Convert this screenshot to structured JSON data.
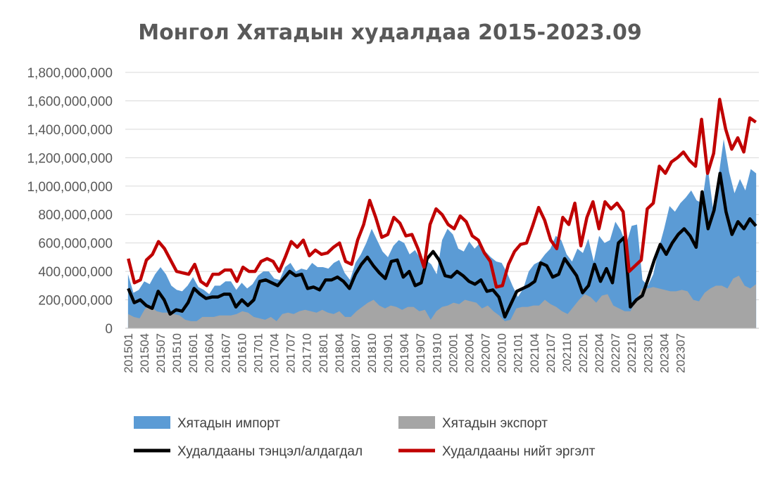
{
  "chart_data": {
    "type": "area",
    "title": "Монгол Хятадын худалдаа 2015-2023.09",
    "xlabel": "",
    "ylabel": "",
    "ylim": [
      0,
      1800000000
    ],
    "y_ticks": [
      0,
      200000000,
      400000000,
      600000000,
      800000000,
      1000000000,
      1200000000,
      1400000000,
      1600000000,
      1800000000
    ],
    "y_tick_labels": [
      "0",
      "200,000,000",
      "400,000,000",
      "600,000,000",
      "800,000,000",
      "1,000,000,000",
      "1,200,000,000",
      "1,400,000,000",
      "1,600,000,000",
      "1,800,000,000"
    ],
    "grid": true,
    "legend_position": "bottom",
    "x_start": "2015-01",
    "x_end": "2023-09",
    "x_tick_labels": [
      "201501",
      "201504",
      "201507",
      "201510",
      "201601",
      "201604",
      "201607",
      "201610",
      "201701",
      "201704",
      "201707",
      "201710",
      "201801",
      "201804",
      "201807",
      "201810",
      "201901",
      "201904",
      "201907",
      "201910",
      "202001",
      "202004",
      "202007",
      "202010",
      "202101",
      "202104",
      "202107",
      "202110",
      "202201",
      "202204",
      "202207",
      "202210",
      "202301",
      "202304",
      "202307"
    ],
    "series": [
      {
        "name": "Хятадын импорт",
        "kind": "area",
        "color": "#5b9bd5",
        "values": [
          380,
          250,
          270,
          330,
          310,
          380,
          430,
          380,
          300,
          270,
          260,
          300,
          360,
          290,
          270,
          240,
          300,
          300,
          330,
          330,
          270,
          320,
          280,
          310,
          370,
          400,
          400,
          350,
          340,
          430,
          460,
          400,
          420,
          410,
          460,
          430,
          430,
          420,
          460,
          480,
          390,
          340,
          460,
          520,
          600,
          700,
          620,
          540,
          500,
          580,
          620,
          600,
          520,
          550,
          490,
          480,
          450,
          380,
          620,
          700,
          660,
          560,
          540,
          610,
          560,
          600,
          540,
          500,
          470,
          460,
          390,
          300,
          220,
          280,
          400,
          450,
          470,
          520,
          560,
          650,
          620,
          520,
          470,
          560,
          530,
          630,
          470,
          650,
          600,
          620,
          750,
          690,
          590,
          720,
          730,
          340,
          300,
          380,
          560,
          700,
          860,
          820,
          880,
          920,
          970,
          900,
          880,
          1150,
          850,
          1050,
          1330,
          1100,
          950,
          1050,
          970,
          1120,
          1090
        ]
      },
      {
        "name": "Хятадын экспорт",
        "kind": "area",
        "color": "#a5a5a5",
        "values": [
          100,
          80,
          70,
          140,
          150,
          120,
          110,
          110,
          100,
          90,
          60,
          50,
          50,
          80,
          80,
          80,
          90,
          90,
          90,
          100,
          120,
          110,
          80,
          70,
          60,
          80,
          50,
          100,
          110,
          100,
          120,
          130,
          120,
          110,
          130,
          110,
          100,
          120,
          80,
          80,
          120,
          150,
          180,
          200,
          160,
          140,
          160,
          150,
          130,
          150,
          150,
          120,
          130,
          60,
          120,
          150,
          160,
          180,
          170,
          200,
          190,
          180,
          140,
          160,
          120,
          90,
          50,
          60,
          140,
          150,
          150,
          160,
          160,
          200,
          170,
          150,
          120,
          100,
          150,
          200,
          240,
          220,
          180,
          230,
          240,
          160,
          140,
          120,
          120,
          200,
          280,
          280,
          290,
          280,
          270,
          260,
          260,
          270,
          260,
          200,
          190,
          250,
          280,
          300,
          300,
          280,
          350,
          370,
          300,
          280,
          310
        ]
      },
      {
        "name": "Худалдааны тэнцэл/алдагдал",
        "kind": "line",
        "color": "#000000",
        "values": [
          280,
          180,
          200,
          160,
          140,
          260,
          200,
          100,
          130,
          120,
          180,
          280,
          240,
          210,
          220,
          220,
          240,
          240,
          150,
          200,
          160,
          200,
          330,
          340,
          320,
          300,
          350,
          400,
          370,
          380,
          280,
          290,
          270,
          340,
          340,
          360,
          330,
          280,
          380,
          450,
          500,
          440,
          390,
          350,
          470,
          480,
          360,
          400,
          300,
          320,
          490,
          540,
          480,
          370,
          360,
          400,
          370,
          330,
          310,
          340,
          260,
          270,
          220,
          80,
          170,
          260,
          280,
          300,
          330,
          460,
          440,
          360,
          380,
          490,
          430,
          370,
          250,
          300,
          450,
          330,
          420,
          320,
          600,
          640,
          150,
          200,
          230,
          350,
          480,
          590,
          520,
          600,
          660,
          700,
          650,
          570,
          960,
          700,
          830,
          1090,
          820,
          660,
          750,
          700,
          770,
          720
        ]
      },
      {
        "name": "Худалдааны нийт эргэлт",
        "kind": "line",
        "color": "#c00000",
        "values": [
          490,
          320,
          340,
          480,
          520,
          610,
          560,
          480,
          400,
          390,
          380,
          450,
          330,
          300,
          380,
          380,
          410,
          410,
          330,
          430,
          400,
          400,
          470,
          490,
          470,
          400,
          500,
          610,
          570,
          620,
          510,
          550,
          520,
          530,
          570,
          600,
          470,
          450,
          620,
          730,
          900,
          780,
          640,
          660,
          780,
          740,
          650,
          660,
          560,
          430,
          730,
          840,
          800,
          730,
          700,
          790,
          750,
          650,
          620,
          530,
          470,
          290,
          300,
          450,
          540,
          590,
          600,
          720,
          850,
          760,
          620,
          560,
          780,
          730,
          880,
          580,
          780,
          890,
          700,
          890,
          840,
          880,
          820,
          400,
          440,
          480,
          840,
          880,
          1140,
          1090,
          1170,
          1200,
          1240,
          1180,
          1140,
          1470,
          1090,
          1230,
          1610,
          1400,
          1260,
          1340,
          1240,
          1480,
          1450
        ]
      }
    ],
    "values_unit_multiplier": 1000000
  }
}
